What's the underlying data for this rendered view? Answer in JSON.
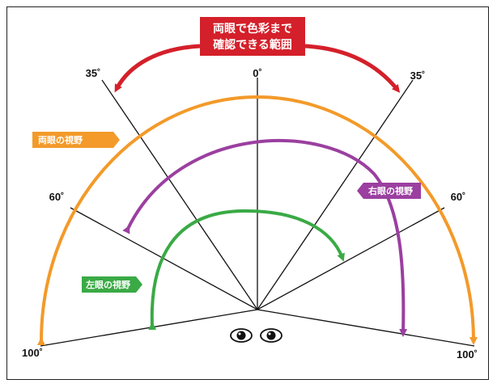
{
  "title": {
    "line1": "両眼で色彩まで",
    "line2": "確認できる範囲"
  },
  "angles": {
    "center": "0˚",
    "left35": "35˚",
    "right35": "35˚",
    "left60": "60˚",
    "right60": "60˚",
    "left100": "100˚",
    "right100": "100˚"
  },
  "fields": {
    "both": "両眼の視野",
    "right": "右眼の視野",
    "left": "左眼の視野"
  },
  "colors": {
    "red": "#d4202a",
    "orange": "#f39a2a",
    "purple": "#9b3fa0",
    "green": "#3aaa45",
    "line": "#111111"
  },
  "icons": [
    "eye-icon",
    "eye-icon"
  ]
}
